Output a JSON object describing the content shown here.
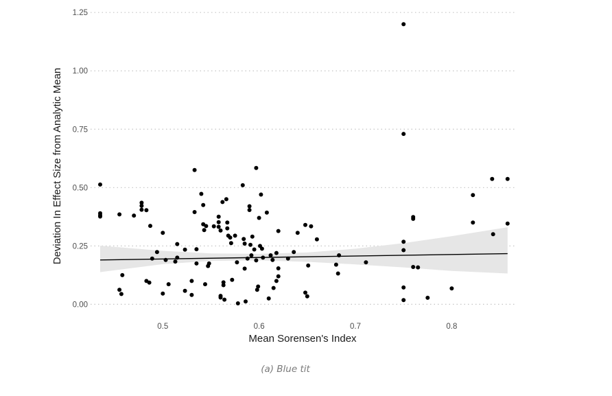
{
  "caption": "(a) Blue tit",
  "chart_data": {
    "type": "scatter",
    "title": "",
    "xlabel": "Mean Sorensen's Index",
    "ylabel": "Deviation In Effect Size from Analytic Mean",
    "xlim": [
      0.425,
      0.8667
    ],
    "ylim": [
      -0.04,
      1.28
    ],
    "x_ticks": [
      0.5,
      0.6,
      0.7,
      0.8
    ],
    "x_tick_labels": [
      "0.5",
      "0.6",
      "0.7",
      "0.8"
    ],
    "y_ticks": [
      0,
      0.25,
      0.5,
      0.75,
      1.0,
      1.25
    ],
    "y_tick_labels": [
      "0.00",
      "0.25",
      "0.50",
      "0.75",
      "1.00",
      "1.25"
    ],
    "grid": "horizontal-dotted",
    "legend": "none",
    "point_color": "#000000",
    "fit_color": "#000000",
    "band_color": "#e6e6e6",
    "points": [
      [
        0.435,
        0.513
      ],
      [
        0.435,
        0.39
      ],
      [
        0.435,
        0.382
      ],
      [
        0.435,
        0.376
      ],
      [
        0.455,
        0.385
      ],
      [
        0.455,
        0.062
      ],
      [
        0.457,
        0.044
      ],
      [
        0.458,
        0.125
      ],
      [
        0.47,
        0.38
      ],
      [
        0.478,
        0.435
      ],
      [
        0.478,
        0.422
      ],
      [
        0.478,
        0.405
      ],
      [
        0.483,
        0.403
      ],
      [
        0.483,
        0.1
      ],
      [
        0.486,
        0.093
      ],
      [
        0.487,
        0.336
      ],
      [
        0.489,
        0.196
      ],
      [
        0.494,
        0.224
      ],
      [
        0.5,
        0.306
      ],
      [
        0.5,
        0.046
      ],
      [
        0.503,
        0.19
      ],
      [
        0.506,
        0.086
      ],
      [
        0.513,
        0.183
      ],
      [
        0.515,
        0.2
      ],
      [
        0.515,
        0.258
      ],
      [
        0.523,
        0.234
      ],
      [
        0.523,
        0.058
      ],
      [
        0.53,
        0.1
      ],
      [
        0.53,
        0.04
      ],
      [
        0.533,
        0.575
      ],
      [
        0.533,
        0.395
      ],
      [
        0.535,
        0.236
      ],
      [
        0.535,
        0.175
      ],
      [
        0.54,
        0.473
      ],
      [
        0.542,
        0.425
      ],
      [
        0.542,
        0.343
      ],
      [
        0.543,
        0.318
      ],
      [
        0.545,
        0.335
      ],
      [
        0.544,
        0.086
      ],
      [
        0.547,
        0.164
      ],
      [
        0.548,
        0.175
      ],
      [
        0.553,
        0.334
      ],
      [
        0.558,
        0.375
      ],
      [
        0.558,
        0.352
      ],
      [
        0.558,
        0.332
      ],
      [
        0.56,
        0.316
      ],
      [
        0.56,
        0.036
      ],
      [
        0.56,
        0.029
      ],
      [
        0.562,
        0.438
      ],
      [
        0.563,
        0.094
      ],
      [
        0.563,
        0.082
      ],
      [
        0.564,
        0.02
      ],
      [
        0.566,
        0.45
      ],
      [
        0.567,
        0.35
      ],
      [
        0.567,
        0.325
      ],
      [
        0.568,
        0.294
      ],
      [
        0.57,
        0.286
      ],
      [
        0.571,
        0.262
      ],
      [
        0.572,
        0.105
      ],
      [
        0.575,
        0.294
      ],
      [
        0.577,
        0.18
      ],
      [
        0.578,
        0.004
      ],
      [
        0.583,
        0.51
      ],
      [
        0.584,
        0.28
      ],
      [
        0.585,
        0.26
      ],
      [
        0.585,
        0.153
      ],
      [
        0.586,
        0.012
      ],
      [
        0.588,
        0.196
      ],
      [
        0.59,
        0.42
      ],
      [
        0.59,
        0.404
      ],
      [
        0.591,
        0.255
      ],
      [
        0.592,
        0.21
      ],
      [
        0.593,
        0.29
      ],
      [
        0.595,
        0.235
      ],
      [
        0.597,
        0.584
      ],
      [
        0.597,
        0.188
      ],
      [
        0.598,
        0.062
      ],
      [
        0.599,
        0.076
      ],
      [
        0.6,
        0.37
      ],
      [
        0.601,
        0.25
      ],
      [
        0.602,
        0.47
      ],
      [
        0.603,
        0.238
      ],
      [
        0.604,
        0.2
      ],
      [
        0.608,
        0.393
      ],
      [
        0.61,
        0.025
      ],
      [
        0.612,
        0.21
      ],
      [
        0.614,
        0.19
      ],
      [
        0.615,
        0.07
      ],
      [
        0.618,
        0.1
      ],
      [
        0.618,
        0.22
      ],
      [
        0.62,
        0.314
      ],
      [
        0.62,
        0.154
      ],
      [
        0.62,
        0.12
      ],
      [
        0.63,
        0.196
      ],
      [
        0.636,
        0.224
      ],
      [
        0.64,
        0.306
      ],
      [
        0.648,
        0.34
      ],
      [
        0.648,
        0.05
      ],
      [
        0.65,
        0.034
      ],
      [
        0.651,
        0.166
      ],
      [
        0.654,
        0.334
      ],
      [
        0.66,
        0.278
      ],
      [
        0.68,
        0.17
      ],
      [
        0.682,
        0.132
      ],
      [
        0.683,
        0.21
      ],
      [
        0.711,
        0.18
      ],
      [
        0.75,
        1.2
      ],
      [
        0.75,
        0.73
      ],
      [
        0.75,
        0.268
      ],
      [
        0.75,
        0.232
      ],
      [
        0.75,
        0.072
      ],
      [
        0.75,
        0.018
      ],
      [
        0.76,
        0.374
      ],
      [
        0.76,
        0.366
      ],
      [
        0.76,
        0.16
      ],
      [
        0.765,
        0.158
      ],
      [
        0.775,
        0.028
      ],
      [
        0.8,
        0.068
      ],
      [
        0.822,
        0.468
      ],
      [
        0.822,
        0.35
      ],
      [
        0.842,
        0.537
      ],
      [
        0.843,
        0.3
      ],
      [
        0.858,
        0.537
      ],
      [
        0.858,
        0.346
      ]
    ],
    "fit_line": {
      "x": [
        0.435,
        0.858
      ],
      "y": [
        0.19,
        0.217
      ]
    },
    "confidence_band": {
      "x": [
        0.435,
        0.5,
        0.55,
        0.6,
        0.65,
        0.7,
        0.75,
        0.8,
        0.858
      ],
      "lower": [
        0.138,
        0.172,
        0.186,
        0.188,
        0.182,
        0.171,
        0.158,
        0.143,
        0.132
      ],
      "upper": [
        0.251,
        0.229,
        0.218,
        0.216,
        0.222,
        0.238,
        0.262,
        0.292,
        0.33
      ]
    }
  }
}
